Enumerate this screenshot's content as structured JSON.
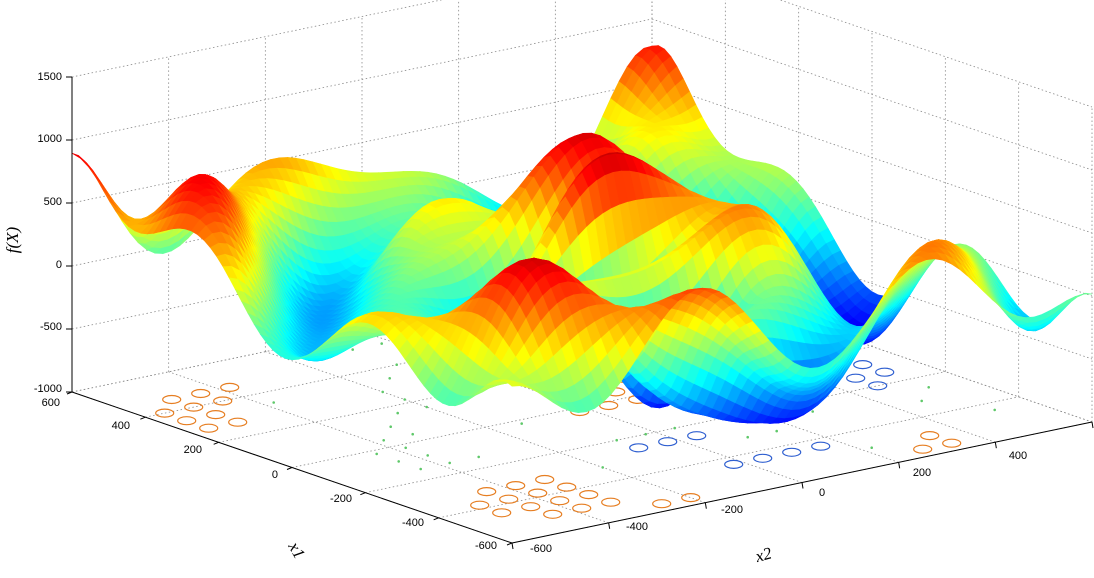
{
  "chart_data": {
    "type": "surface",
    "function": "f(X)",
    "zlabel": "f(X)",
    "xlabel": "x1",
    "ylabel": "x2",
    "z_ticks": [
      "1500",
      "1000",
      "500",
      "0",
      "-500",
      "-1000"
    ],
    "x1_ticks": [
      "600",
      "400",
      "200",
      "0",
      "-200",
      "-400",
      "-600"
    ],
    "x2_ticks": [
      "-600",
      "-400",
      "-200",
      "0",
      "200",
      "400"
    ],
    "x1_range": [
      -600,
      600
    ],
    "x2_range": [
      -600,
      600
    ],
    "z_range": [
      -1000,
      1500
    ],
    "grid": true,
    "colormap": "jet",
    "contours_projected_on_floor": true
  }
}
